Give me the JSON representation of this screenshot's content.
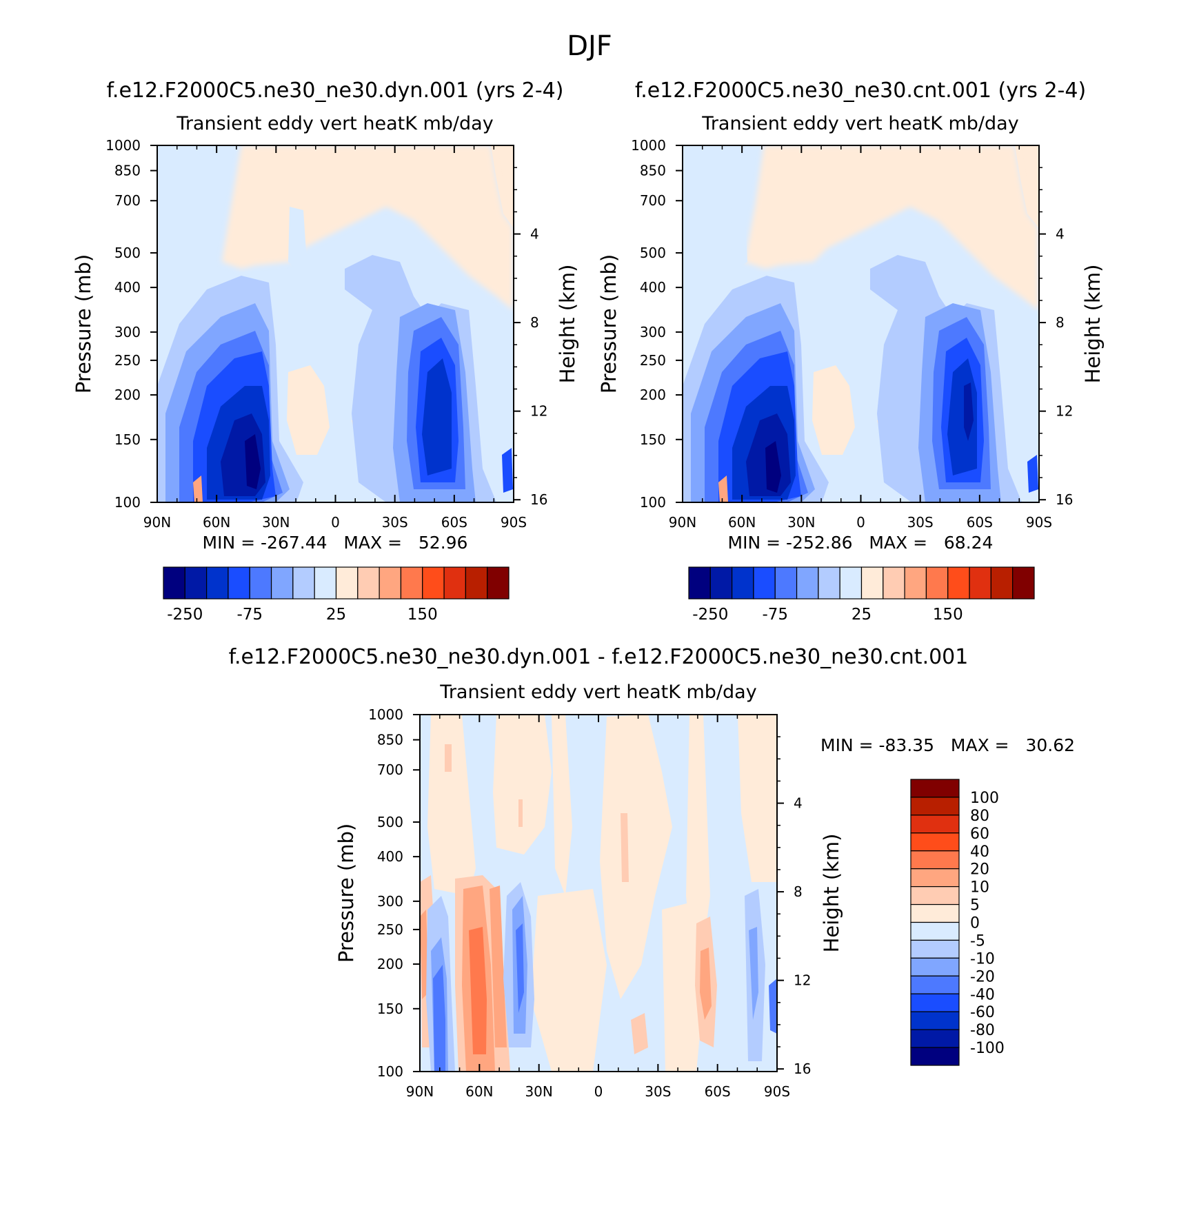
{
  "title": "DJF",
  "panels": [
    {
      "id": "dyn",
      "case_title": "f.e12.F2000C5.ne30_ne30.dyn.001 (yrs 2-4)",
      "subtitle": "Transient eddy vert heatK mb/day",
      "ylabel": "Pressure (mb)",
      "y2label": "Height (km)",
      "min_max": "MIN = -267.44   MAX =   52.96",
      "colorbar_ticks": [
        "-250",
        "-75",
        "25",
        "150"
      ]
    },
    {
      "id": "cnt",
      "case_title": "f.e12.F2000C5.ne30_ne30.cnt.001 (yrs 2-4)",
      "subtitle": "Transient eddy vert heatK mb/day",
      "ylabel": "Pressure (mb)",
      "y2label": "Height (km)",
      "min_max": "MIN = -252.86   MAX =   68.24",
      "colorbar_ticks": [
        "-250",
        "-75",
        "25",
        "150"
      ]
    },
    {
      "id": "diff",
      "case_title": "f.e12.F2000C5.ne30_ne30.dyn.001 - f.e12.F2000C5.ne30_ne30.cnt.001",
      "subtitle": "Transient eddy vert heatK mb/day",
      "ylabel": "Pressure (mb)",
      "y2label": "Height (km)",
      "min_max": "MIN = -83.35   MAX =   30.62",
      "colorbar_ticks": [
        "100",
        "80",
        "60",
        "40",
        "20",
        "10",
        "5",
        "0",
        "-5",
        "-10",
        "-20",
        "-40",
        "-60",
        "-80",
        "-100"
      ]
    }
  ],
  "chart_data": {
    "type": "heatmap",
    "x_ticks": [
      "90N",
      "60N",
      "30N",
      "0",
      "30S",
      "60S",
      "90S"
    ],
    "x_values": [
      90,
      60,
      30,
      0,
      -30,
      -60,
      -90
    ],
    "y_ticks": [
      "100",
      "150",
      "200",
      "250",
      "300",
      "400",
      "500",
      "700",
      "850",
      "1000"
    ],
    "y_values": [
      100,
      150,
      200,
      250,
      300,
      400,
      500,
      700,
      850,
      1000
    ],
    "ylim": [
      1000,
      100
    ],
    "y2_ticks": [
      "16",
      "12",
      "8",
      "4"
    ],
    "y2_values": [
      16,
      12,
      8,
      4
    ],
    "scale_height_km": 7,
    "main_colors": [
      "#00007f",
      "#0019a6",
      "#0033cc",
      "#1a4dff",
      "#4d79ff",
      "#80a6ff",
      "#b3ccff",
      "#d9ebff",
      "#ffebd9",
      "#ffccb3",
      "#ffa680",
      "#ff794d",
      "#ff4d1a",
      "#e03010",
      "#b81f00",
      "#800000"
    ],
    "diff_colors": [
      "#00007f",
      "#0019a6",
      "#0033cc",
      "#1a4dff",
      "#4d79ff",
      "#80a6ff",
      "#b3ccff",
      "#d9ebff",
      "#ffebd9",
      "#ffccb3",
      "#ffa680",
      "#ff794d",
      "#ff4d1a",
      "#e03010",
      "#b81f00",
      "#800000"
    ]
  }
}
